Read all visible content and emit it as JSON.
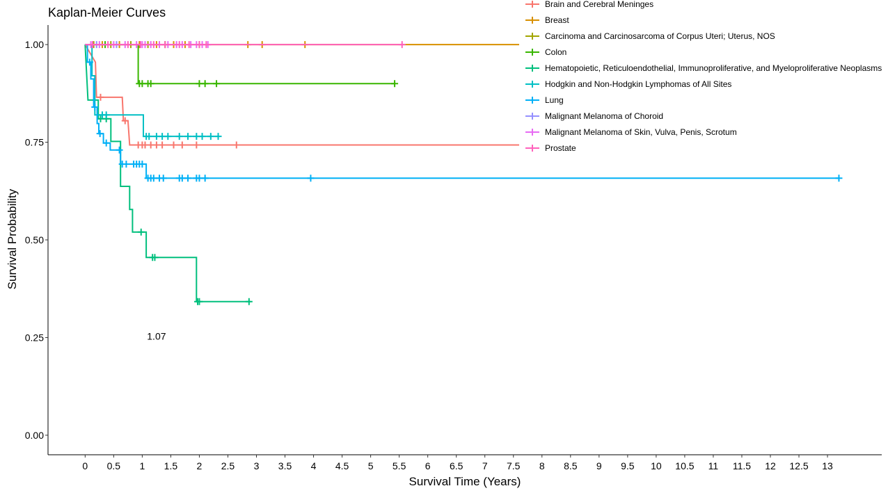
{
  "chart_data": {
    "type": "line",
    "title": "Kaplan-Meier Curves",
    "xlabel": "Survival Time (Years)",
    "ylabel": "Survival Probability",
    "xlim": [
      -0.65,
      13.95
    ],
    "ylim": [
      -0.05,
      1.05
    ],
    "x_ticks": [
      0,
      0.5,
      1,
      1.5,
      2,
      2.5,
      3,
      3.5,
      4,
      4.5,
      5,
      5.5,
      6,
      6.5,
      7,
      7.5,
      8,
      8.5,
      9,
      9.5,
      10,
      10.5,
      11,
      11.5,
      12,
      12.5,
      13
    ],
    "x_tick_labels": [
      "0",
      "0.5",
      "1",
      "1.5",
      "2",
      "2.5",
      "3",
      "3.5",
      "4",
      "4.5",
      "5",
      "5.5",
      "6",
      "6.5",
      "7",
      "7.5",
      "8",
      "8.5",
      "9",
      "9.5",
      "10",
      "10.5",
      "11",
      "11.5",
      "12",
      "12.5",
      "13"
    ],
    "y_ticks": [
      0,
      0.25,
      0.5,
      0.75,
      1.0
    ],
    "y_tick_labels": [
      "0.00",
      "0.25",
      "0.50",
      "0.75",
      "1.00"
    ],
    "grid": false,
    "legend_position": "top-right",
    "annotations": [
      {
        "text": "1.07",
        "x": 1.25,
        "y": 0.245
      }
    ],
    "series": [
      {
        "name": "Brain and Cerebral Meninges",
        "color": "#F8766D",
        "steps": [
          [
            0,
            1.0
          ],
          [
            0.18,
            0.955
          ],
          [
            0.2,
            0.865
          ],
          [
            0.65,
            0.865
          ],
          [
            0.67,
            0.805
          ],
          [
            0.75,
            0.805
          ],
          [
            0.78,
            0.743
          ],
          [
            7.6,
            0.743
          ]
        ],
        "censor": [
          [
            0.27,
            0.865
          ],
          [
            0.7,
            0.805
          ],
          [
            0.93,
            0.743
          ],
          [
            1.0,
            0.743
          ],
          [
            1.05,
            0.743
          ],
          [
            1.15,
            0.743
          ],
          [
            1.25,
            0.743
          ],
          [
            1.35,
            0.743
          ],
          [
            1.55,
            0.743
          ],
          [
            1.7,
            0.743
          ],
          [
            1.95,
            0.743
          ],
          [
            2.65,
            0.743
          ]
        ]
      },
      {
        "name": "Breast",
        "color": "#D89000",
        "steps": [
          [
            0,
            1.0
          ],
          [
            7.6,
            1.0
          ]
        ],
        "censor": [
          [
            0.3,
            1.0
          ],
          [
            0.6,
            1.0
          ],
          [
            0.95,
            1.0
          ],
          [
            1.25,
            1.0
          ],
          [
            1.55,
            1.0
          ],
          [
            1.75,
            1.0
          ],
          [
            2.0,
            1.0
          ],
          [
            2.85,
            1.0
          ],
          [
            3.1,
            1.0
          ],
          [
            3.85,
            1.0
          ]
        ]
      },
      {
        "name": "Carcinoma and Carcinosarcoma of Corpus Uteri; Uterus, NOS",
        "color": "#A3A500",
        "steps": [
          [
            0,
            1.0
          ],
          [
            1.5,
            1.0
          ]
        ],
        "censor": [
          [
            0.15,
            1.0
          ],
          [
            0.45,
            1.0
          ],
          [
            0.8,
            1.0
          ],
          [
            1.1,
            1.0
          ],
          [
            1.4,
            1.0
          ]
        ]
      },
      {
        "name": "Colon",
        "color": "#39B600",
        "steps": [
          [
            0,
            1.0
          ],
          [
            0.93,
            1.0
          ],
          [
            0.93,
            0.9
          ],
          [
            5.42,
            0.9
          ]
        ],
        "censor": [
          [
            0.35,
            1.0
          ],
          [
            0.95,
            0.9
          ],
          [
            1.0,
            0.9
          ],
          [
            1.1,
            0.9
          ],
          [
            1.15,
            0.9
          ],
          [
            2.0,
            0.9
          ],
          [
            2.1,
            0.9
          ],
          [
            2.3,
            0.9
          ],
          [
            5.42,
            0.9
          ]
        ]
      },
      {
        "name": "Hematopoietic, Reticuloendothelial, Immunoproliferative, and Myeloproliferative Neoplasms",
        "color": "#00BF7D",
        "steps": [
          [
            0,
            1.0
          ],
          [
            0.05,
            0.858
          ],
          [
            0.23,
            0.858
          ],
          [
            0.23,
            0.81
          ],
          [
            0.45,
            0.81
          ],
          [
            0.45,
            0.752
          ],
          [
            0.62,
            0.752
          ],
          [
            0.62,
            0.637
          ],
          [
            0.78,
            0.637
          ],
          [
            0.78,
            0.578
          ],
          [
            0.83,
            0.578
          ],
          [
            0.83,
            0.52
          ],
          [
            1.07,
            0.52
          ],
          [
            1.07,
            0.455
          ],
          [
            1.95,
            0.455
          ],
          [
            1.95,
            0.342
          ],
          [
            2.9,
            0.342
          ]
        ],
        "censor": [
          [
            0.27,
            0.81
          ],
          [
            0.37,
            0.81
          ],
          [
            0.98,
            0.52
          ],
          [
            1.18,
            0.455
          ],
          [
            1.22,
            0.455
          ],
          [
            1.97,
            0.342
          ],
          [
            2.0,
            0.342
          ],
          [
            2.87,
            0.342
          ]
        ]
      },
      {
        "name": "Hodgkin and Non-Hodgkin Lymphomas of All Sites",
        "color": "#00BFC4",
        "steps": [
          [
            0,
            1.0
          ],
          [
            0.12,
            1.0
          ],
          [
            0.12,
            0.92
          ],
          [
            0.17,
            0.92
          ],
          [
            0.17,
            0.82
          ],
          [
            1.02,
            0.82
          ],
          [
            1.02,
            0.765
          ],
          [
            2.35,
            0.765
          ]
        ],
        "censor": [
          [
            0.3,
            0.82
          ],
          [
            0.37,
            0.82
          ],
          [
            1.07,
            0.765
          ],
          [
            1.12,
            0.765
          ],
          [
            1.25,
            0.765
          ],
          [
            1.35,
            0.765
          ],
          [
            1.45,
            0.765
          ],
          [
            1.65,
            0.765
          ],
          [
            1.8,
            0.765
          ],
          [
            1.95,
            0.765
          ],
          [
            2.05,
            0.765
          ],
          [
            2.2,
            0.765
          ],
          [
            2.33,
            0.765
          ]
        ]
      },
      {
        "name": "Lung",
        "color": "#00B0F6",
        "steps": [
          [
            0,
            1.0
          ],
          [
            0.04,
            1.0
          ],
          [
            0.04,
            0.955
          ],
          [
            0.1,
            0.955
          ],
          [
            0.1,
            0.912
          ],
          [
            0.15,
            0.912
          ],
          [
            0.15,
            0.84
          ],
          [
            0.21,
            0.84
          ],
          [
            0.21,
            0.798
          ],
          [
            0.24,
            0.798
          ],
          [
            0.24,
            0.772
          ],
          [
            0.32,
            0.772
          ],
          [
            0.32,
            0.748
          ],
          [
            0.44,
            0.748
          ],
          [
            0.44,
            0.73
          ],
          [
            0.62,
            0.73
          ],
          [
            0.62,
            0.694
          ],
          [
            1.07,
            0.694
          ],
          [
            1.07,
            0.658
          ],
          [
            13.2,
            0.658
          ]
        ],
        "censor": [
          [
            0.08,
            0.955
          ],
          [
            0.17,
            0.84
          ],
          [
            0.26,
            0.772
          ],
          [
            0.37,
            0.748
          ],
          [
            0.6,
            0.73
          ],
          [
            0.65,
            0.694
          ],
          [
            0.72,
            0.694
          ],
          [
            0.85,
            0.694
          ],
          [
            0.9,
            0.694
          ],
          [
            0.95,
            0.694
          ],
          [
            1.0,
            0.694
          ],
          [
            1.1,
            0.658
          ],
          [
            1.15,
            0.658
          ],
          [
            1.2,
            0.658
          ],
          [
            1.3,
            0.658
          ],
          [
            1.37,
            0.658
          ],
          [
            1.65,
            0.658
          ],
          [
            1.7,
            0.658
          ],
          [
            1.8,
            0.658
          ],
          [
            1.95,
            0.658
          ],
          [
            2.0,
            0.658
          ],
          [
            2.1,
            0.658
          ],
          [
            3.95,
            0.658
          ],
          [
            13.2,
            0.658
          ]
        ]
      },
      {
        "name": "Malignant Melanoma of Choroid",
        "color": "#9590FF",
        "steps": [
          [
            0,
            1.0
          ],
          [
            0.6,
            1.0
          ]
        ],
        "censor": [
          [
            0.2,
            1.0
          ],
          [
            0.55,
            1.0
          ]
        ]
      },
      {
        "name": "Malignant Melanoma of Skin, Vulva, Penis, Scrotum",
        "color": "#E76BF3",
        "steps": [
          [
            0,
            1.0
          ],
          [
            2.2,
            1.0
          ]
        ],
        "censor": [
          [
            0.1,
            1.0
          ],
          [
            0.25,
            1.0
          ],
          [
            0.5,
            1.0
          ],
          [
            0.7,
            1.0
          ],
          [
            0.9,
            1.0
          ],
          [
            1.0,
            1.0
          ],
          [
            1.05,
            1.0
          ],
          [
            1.15,
            1.0
          ],
          [
            1.3,
            1.0
          ],
          [
            1.45,
            1.0
          ],
          [
            1.6,
            1.0
          ],
          [
            1.7,
            1.0
          ],
          [
            1.85,
            1.0
          ],
          [
            1.95,
            1.0
          ],
          [
            2.05,
            1.0
          ],
          [
            2.15,
            1.0
          ]
        ]
      },
      {
        "name": "Prostate",
        "color": "#FF62BC",
        "steps": [
          [
            0,
            1.0
          ],
          [
            5.55,
            1.0
          ]
        ],
        "censor": [
          [
            0.13,
            1.0
          ],
          [
            0.4,
            1.0
          ],
          [
            0.75,
            1.0
          ],
          [
            0.97,
            1.0
          ],
          [
            1.2,
            1.0
          ],
          [
            1.4,
            1.0
          ],
          [
            1.65,
            1.0
          ],
          [
            1.82,
            1.0
          ],
          [
            2.0,
            1.0
          ],
          [
            2.12,
            1.0
          ],
          [
            5.55,
            1.0
          ]
        ]
      }
    ]
  }
}
